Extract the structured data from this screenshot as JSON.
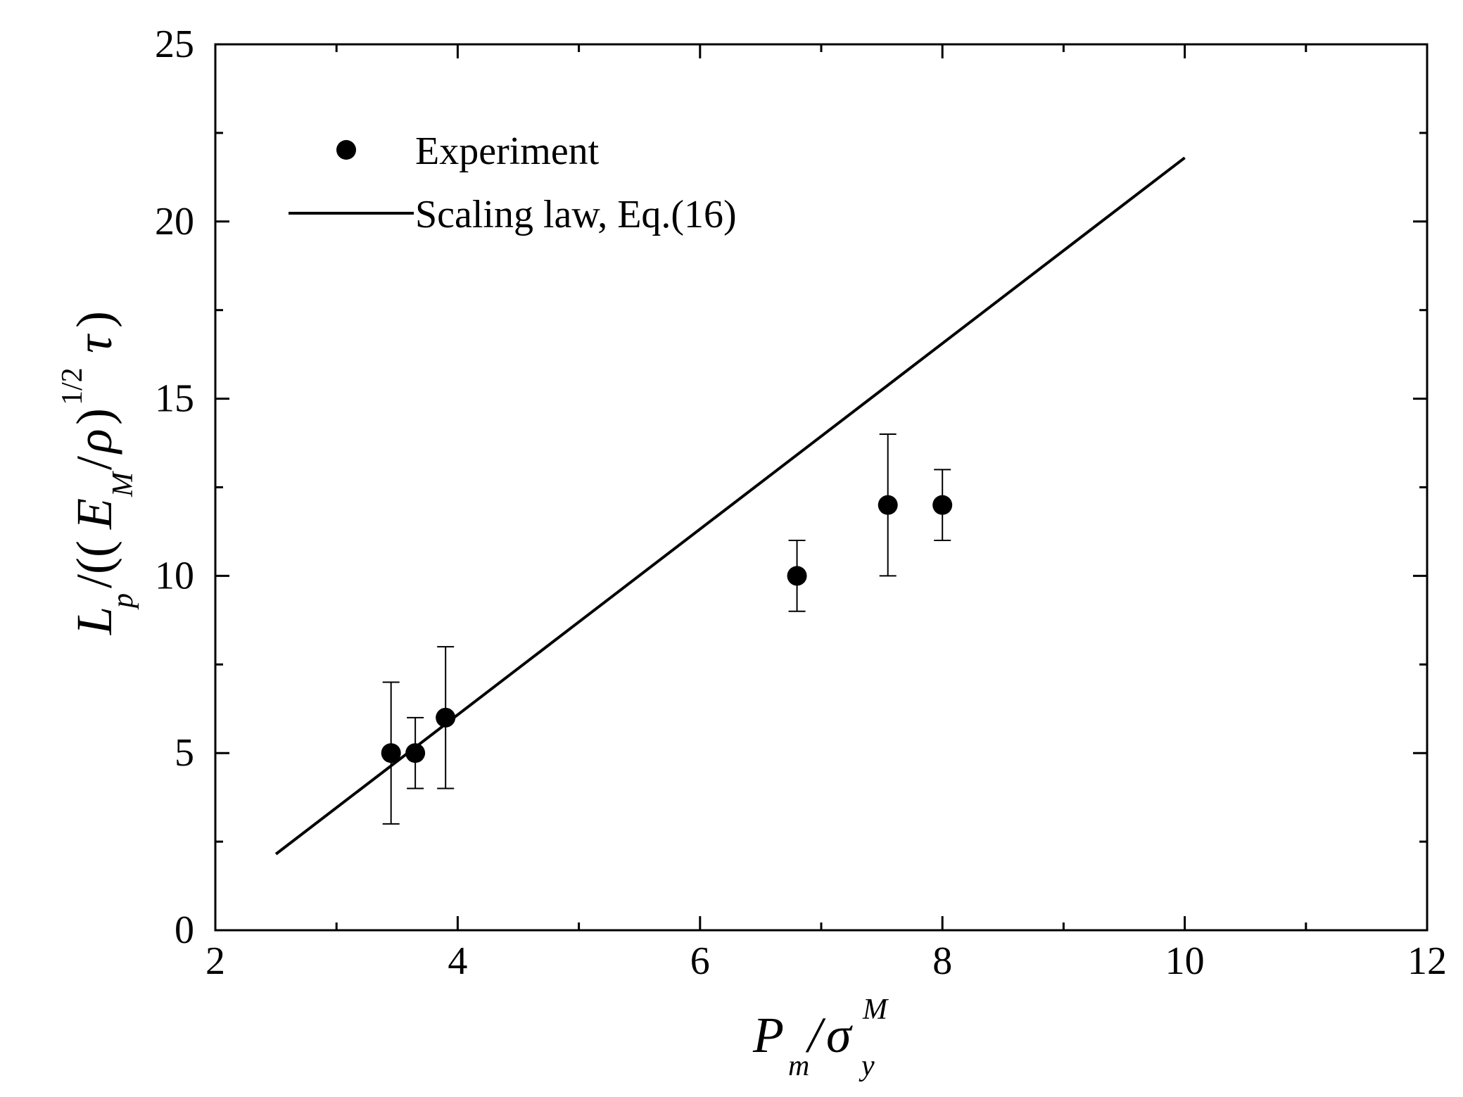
{
  "chart_data": {
    "type": "scatter",
    "title": "",
    "xlim": [
      2,
      12
    ],
    "ylim": [
      0,
      25
    ],
    "x_ticks": [
      2,
      4,
      6,
      8,
      10,
      12
    ],
    "x_minor_ticks": [
      3,
      5,
      7,
      9,
      11
    ],
    "y_ticks": [
      0,
      5,
      10,
      15,
      20,
      25
    ],
    "y_minor_ticks": [
      2.5,
      7.5,
      12.5,
      17.5,
      22.5
    ],
    "xlabel": {
      "P": "P",
      "m": "m",
      "slash": "/",
      "sigma": "σ",
      "y": "y",
      "M": "M"
    },
    "ylabel": {
      "L": "L",
      "p": "p",
      "open": "/((",
      "E": "E",
      "M": "M",
      "slash": "/",
      "rho": "ρ",
      "close": ")",
      "half": "1/2",
      "tau": "τ",
      "end": ")"
    },
    "series": [
      {
        "name": "Experiment",
        "kind": "points_with_errorbars",
        "points": [
          {
            "x": 3.45,
            "y": 5,
            "ylow": 3,
            "yhigh": 7
          },
          {
            "x": 3.65,
            "y": 5,
            "ylow": 4,
            "yhigh": 6
          },
          {
            "x": 3.9,
            "y": 6,
            "ylow": 4,
            "yhigh": 8
          },
          {
            "x": 6.8,
            "y": 10,
            "ylow": 9,
            "yhigh": 11
          },
          {
            "x": 7.55,
            "y": 12,
            "ylow": 10,
            "yhigh": 14
          },
          {
            "x": 8.0,
            "y": 12,
            "ylow": 11,
            "yhigh": 13
          }
        ]
      },
      {
        "name": "Scaling law, Eq.(16)",
        "kind": "line",
        "x": [
          2.5,
          10
        ],
        "y": [
          2.15,
          21.8
        ]
      }
    ],
    "legend": {
      "position": "top-left",
      "entries": [
        "Experiment",
        "Scaling law, Eq.(16)"
      ]
    },
    "colors": {
      "marks": "#000000",
      "background": "#ffffff"
    }
  }
}
